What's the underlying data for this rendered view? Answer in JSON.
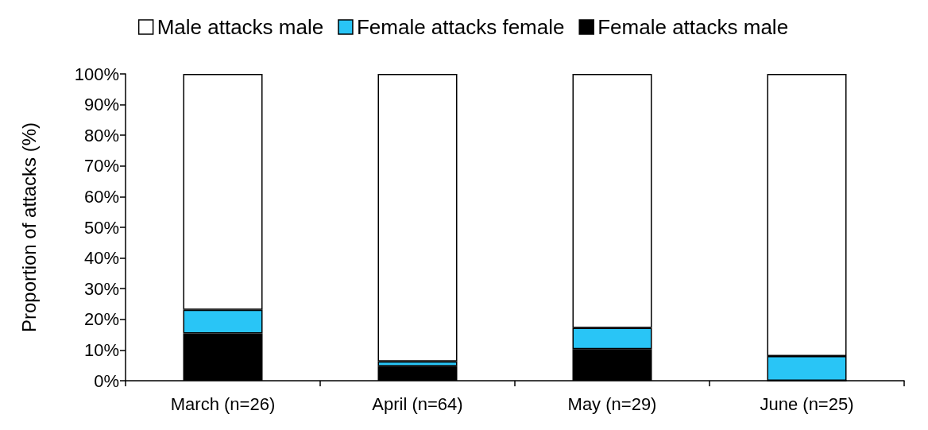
{
  "chart_data": {
    "type": "bar",
    "stacked": true,
    "categories": [
      "March (n=26)",
      "April (n=64)",
      "May (n=29)",
      "June (n=25)"
    ],
    "series": [
      {
        "name": "Female attacks male",
        "color": "#000000",
        "values": [
          15.4,
          4.7,
          10.3,
          0
        ]
      },
      {
        "name": "Female attacks female",
        "color": "#29c5f6",
        "values": [
          7.7,
          1.6,
          6.9,
          8
        ]
      },
      {
        "name": "Male attacks male",
        "color": "#ffffff",
        "values": [
          76.9,
          93.7,
          82.8,
          92
        ]
      }
    ],
    "ylabel": "Proportion of attacks (%)",
    "ylim": [
      0,
      100
    ],
    "yticks": [
      {
        "value": 0,
        "label": "0%"
      },
      {
        "value": 10,
        "label": "10%"
      },
      {
        "value": 20,
        "label": "20%"
      },
      {
        "value": 30,
        "label": "30%"
      },
      {
        "value": 40,
        "label": "40%"
      },
      {
        "value": 50,
        "label": "50%"
      },
      {
        "value": 60,
        "label": "60%"
      },
      {
        "value": 70,
        "label": "70%"
      },
      {
        "value": 80,
        "label": "80%"
      },
      {
        "value": 90,
        "label": "90%"
      },
      {
        "value": 100,
        "label": "100%"
      }
    ],
    "grid": false,
    "legend": "top"
  }
}
